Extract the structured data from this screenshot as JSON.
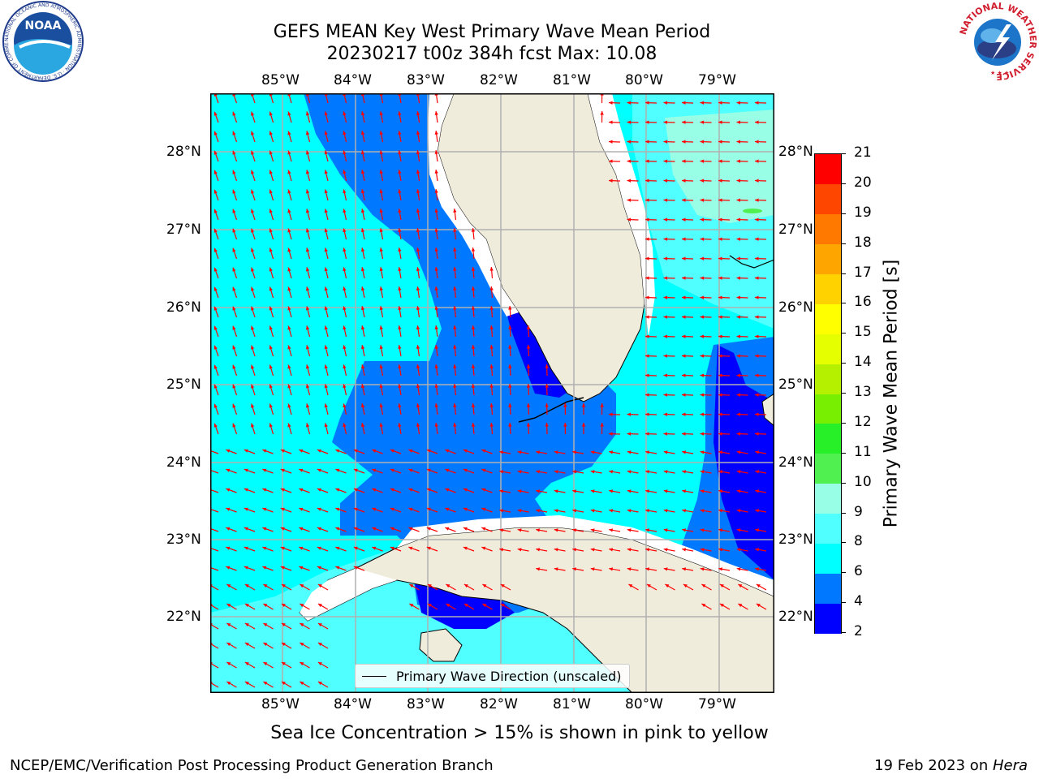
{
  "header": {
    "title_line1": "GEFS MEAN Key West Primary Wave Mean Period",
    "title_line2": "20230217 t00z 384h fcst   Max: 10.08"
  },
  "logos": {
    "left_text": "NOAA",
    "left_ring_text": "NATIONAL OCEANIC AND ATMOSPHERIC ADMINISTRATION · U.S. DEPARTMENT OF COMMERCE",
    "right_ring_text": "NATIONAL WEATHER SERVICE"
  },
  "map": {
    "lon_labels": [
      "85°W",
      "84°W",
      "83°W",
      "82°W",
      "81°W",
      "80°W",
      "79°W"
    ],
    "lat_labels": [
      "28°N",
      "27°N",
      "26°N",
      "25°N",
      "24°N",
      "23°N",
      "22°N"
    ],
    "land_color": "#efecdc",
    "arrow_color": "#ff0000",
    "legend_label": "Primary Wave Direction (unscaled)"
  },
  "colorbar": {
    "title": "Primary Wave Mean Period [s]",
    "tick_labels": [
      "2",
      "4",
      "6",
      "8",
      "9",
      "10",
      "11",
      "12",
      "13",
      "14",
      "15",
      "16",
      "17",
      "18",
      "19",
      "20",
      "21"
    ],
    "colors": [
      "#0000ff",
      "#0078ff",
      "#00ffff",
      "#50ffff",
      "#98ffe6",
      "#50f050",
      "#28f028",
      "#78ef00",
      "#b4f000",
      "#e6ff00",
      "#ffff00",
      "#ffd200",
      "#ffa500",
      "#ff7800",
      "#ff4600",
      "#ff0000"
    ]
  },
  "footer": {
    "note": "Sea Ice Concentration > 15% is shown in pink to yellow",
    "left": "NCEP/EMC/Verification Post Processing Product Generation Branch",
    "right_date": "19 Feb 2023 on ",
    "right_machine": "Hera"
  }
}
